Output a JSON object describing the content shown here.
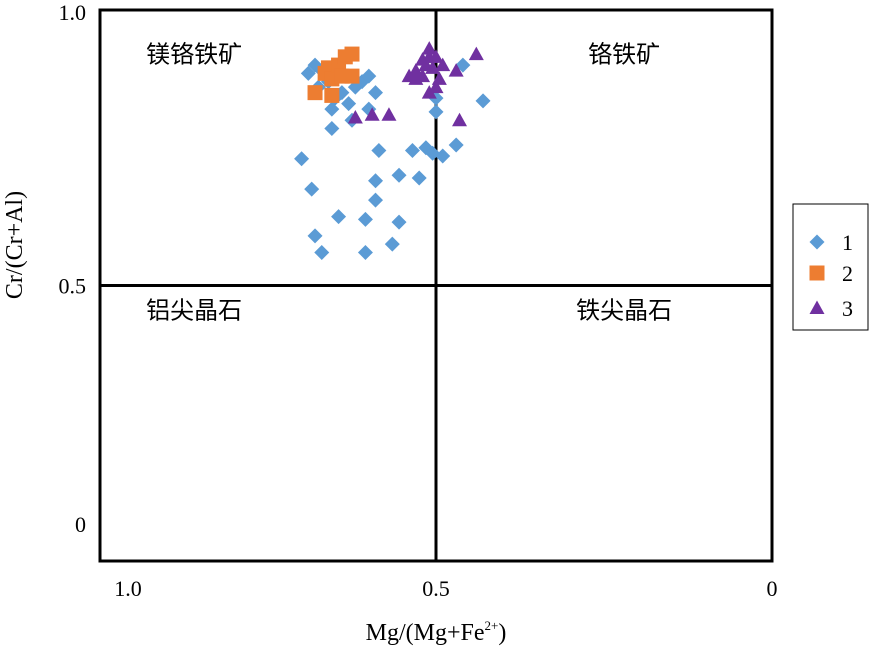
{
  "chart_data": {
    "type": "scatter",
    "title": "",
    "xlabel_main": "Mg/(Mg+Fe",
    "xlabel_sup": "2+",
    "xlabel_close": ")",
    "ylabel": "Cr/(Cr+Al)",
    "x_reversed": true,
    "xlim": [
      1.0,
      0
    ],
    "ylim": [
      0,
      1.0
    ],
    "x_ticks": [
      {
        "value": 1.0,
        "label": "1.0"
      },
      {
        "value": 0.5,
        "label": "0.5"
      },
      {
        "value": 0,
        "label": "0"
      }
    ],
    "y_ticks": [
      {
        "value": 1.0,
        "label": "1.0"
      },
      {
        "value": 0.5,
        "label": "0.5"
      },
      {
        "value": 0,
        "label": "0"
      }
    ],
    "grid": false,
    "divider_x": 0.5,
    "divider_y": 0.5,
    "field_labels": [
      {
        "text": "镁铬铁矿",
        "x": 0.86,
        "y": 0.905
      },
      {
        "text": "铬铁矿",
        "x": 0.22,
        "y": 0.905
      },
      {
        "text": "铝尖晶石",
        "x": 0.86,
        "y": 0.44
      },
      {
        "text": "铁尖晶石",
        "x": 0.22,
        "y": 0.44
      }
    ],
    "legend_position": "right",
    "series": [
      {
        "name": "1",
        "marker": "diamond",
        "color": "#5b9bd5",
        "points": [
          [
            0.69,
            0.885
          ],
          [
            0.68,
            0.9
          ],
          [
            0.67,
            0.89
          ],
          [
            0.675,
            0.86
          ],
          [
            0.66,
            0.87
          ],
          [
            0.65,
            0.84
          ],
          [
            0.655,
            0.82
          ],
          [
            0.64,
            0.85
          ],
          [
            0.63,
            0.83
          ],
          [
            0.62,
            0.86
          ],
          [
            0.61,
            0.87
          ],
          [
            0.6,
            0.82
          ],
          [
            0.6,
            0.88
          ],
          [
            0.59,
            0.85
          ],
          [
            0.625,
            0.8
          ],
          [
            0.655,
            0.785
          ],
          [
            0.5,
            0.84
          ],
          [
            0.5,
            0.815
          ],
          [
            0.46,
            0.9
          ],
          [
            0.43,
            0.835
          ],
          [
            0.585,
            0.745
          ],
          [
            0.535,
            0.745
          ],
          [
            0.515,
            0.75
          ],
          [
            0.505,
            0.74
          ],
          [
            0.49,
            0.735
          ],
          [
            0.47,
            0.755
          ],
          [
            0.7,
            0.73
          ],
          [
            0.555,
            0.7
          ],
          [
            0.59,
            0.69
          ],
          [
            0.525,
            0.695
          ],
          [
            0.685,
            0.675
          ],
          [
            0.59,
            0.655
          ],
          [
            0.645,
            0.625
          ],
          [
            0.605,
            0.62
          ],
          [
            0.555,
            0.615
          ],
          [
            0.68,
            0.59
          ],
          [
            0.565,
            0.575
          ],
          [
            0.67,
            0.56
          ],
          [
            0.605,
            0.56
          ]
        ]
      },
      {
        "name": "2",
        "marker": "square",
        "color": "#ed7d31",
        "points": [
          [
            0.68,
            0.85
          ],
          [
            0.665,
            0.885
          ],
          [
            0.66,
            0.895
          ],
          [
            0.655,
            0.875
          ],
          [
            0.645,
            0.9
          ],
          [
            0.635,
            0.915
          ],
          [
            0.625,
            0.92
          ],
          [
            0.64,
            0.88
          ],
          [
            0.625,
            0.88
          ],
          [
            0.655,
            0.845
          ]
        ]
      },
      {
        "name": "3",
        "marker": "triangle",
        "color": "#7030a0",
        "points": [
          [
            0.51,
            0.93
          ],
          [
            0.51,
            0.915
          ],
          [
            0.52,
            0.91
          ],
          [
            0.5,
            0.915
          ],
          [
            0.515,
            0.9
          ],
          [
            0.52,
            0.88
          ],
          [
            0.53,
            0.875
          ],
          [
            0.49,
            0.9
          ],
          [
            0.505,
            0.895
          ],
          [
            0.53,
            0.89
          ],
          [
            0.54,
            0.88
          ],
          [
            0.495,
            0.875
          ],
          [
            0.5,
            0.86
          ],
          [
            0.51,
            0.85
          ],
          [
            0.47,
            0.89
          ],
          [
            0.44,
            0.92
          ],
          [
            0.57,
            0.81
          ],
          [
            0.595,
            0.81
          ],
          [
            0.62,
            0.805
          ],
          [
            0.465,
            0.8
          ]
        ]
      }
    ]
  }
}
